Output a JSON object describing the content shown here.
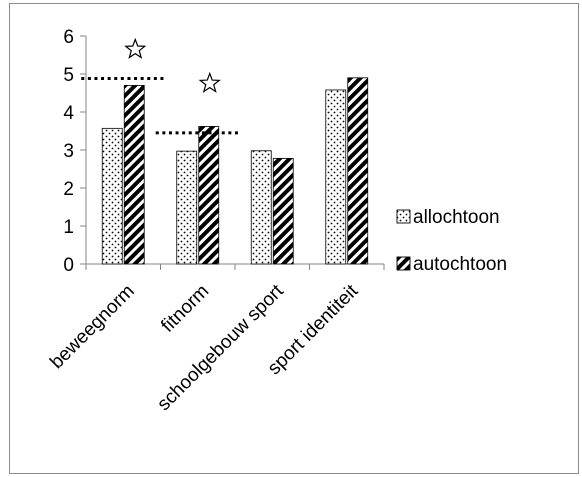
{
  "chart_data": {
    "type": "bar",
    "categories": [
      "beweegnorm",
      "fitnorm",
      "schoolgebouw sport",
      "sport identiteit"
    ],
    "series": [
      {
        "name": "allochtoon",
        "values": [
          3.57,
          2.97,
          2.98,
          4.58
        ],
        "pattern": "dots"
      },
      {
        "name": "autochtoon",
        "values": [
          4.7,
          3.62,
          2.78,
          4.9
        ],
        "pattern": "diagonal-stripes"
      }
    ],
    "ylim": [
      0,
      6
    ],
    "yticks": [
      0,
      1,
      2,
      3,
      4,
      5,
      6
    ],
    "title": "",
    "xlabel": "",
    "ylabel": "",
    "grid": false,
    "legend_position": "right",
    "reference_lines": [
      {
        "category": "beweegnorm",
        "value": 4.88,
        "style": "dotted"
      },
      {
        "category": "fitnorm",
        "value": 3.45,
        "style": "dotted"
      }
    ],
    "significance_markers": [
      {
        "category": "beweegnorm",
        "symbol": "star"
      },
      {
        "category": "fitnorm",
        "symbol": "star"
      }
    ]
  }
}
